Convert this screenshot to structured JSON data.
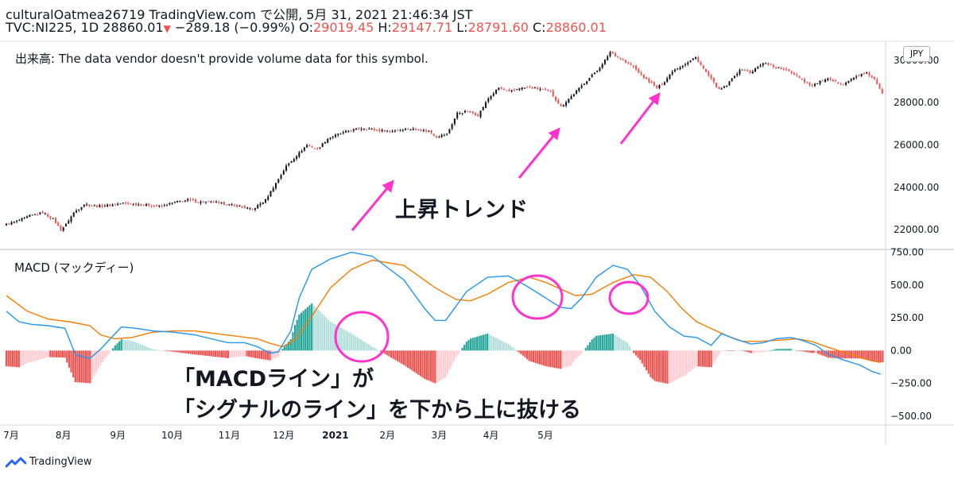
{
  "header": {
    "line1": "culturalOatmea26719 TradingView.com で公開, 5月 31, 2021 21:46:34 JST",
    "symbol": "TVC:NI225, 1D",
    "last": "28860.01",
    "change": "−289.18 (−0.99%)",
    "o_label": "O:",
    "o_value": "29019.45",
    "h_label": "H:",
    "h_value": "29147.71",
    "l_label": "L:",
    "l_value": "28791.60",
    "c_label": "C:",
    "c_value": "28860.01"
  },
  "volume_note": "出来高: The data vendor doesn't provide volume data for this symbol.",
  "currency_badge": "JPY",
  "macd_label": "MACD (マックディー)",
  "annotations": {
    "trend": "上昇トレンド",
    "line1": "「MACDライン」が",
    "line2": "「シグナルのライン」を下から上に抜ける"
  },
  "brand": "TradingView",
  "colors": {
    "up": "#131722",
    "down": "#ef5350",
    "macd": "#2196f3",
    "signal": "#f57c00",
    "hist_pos_strong": "#26a69a",
    "hist_pos_weak": "#b2dfdb",
    "hist_neg_strong": "#ef5350",
    "hist_neg_weak": "#ffcdd2",
    "annotation": "#ff33cc"
  },
  "chart_data": [
    {
      "type": "candlestick",
      "title": "TVC:NI225, 1D",
      "ylim": [
        21100,
        30900
      ],
      "y_ticks": [
        "22000.00",
        "24000.00",
        "26000.00",
        "28000.00",
        "30000.00"
      ],
      "x_ticks": [
        "7月",
        "8月",
        "9月",
        "10月",
        "11月",
        "12月",
        "2021",
        "2月",
        "3月",
        "4月",
        "5月"
      ],
      "close_path": [
        [
          0,
          22250
        ],
        [
          4,
          22400
        ],
        [
          9,
          22650
        ],
        [
          14,
          22800
        ],
        [
          18,
          22500
        ],
        [
          21,
          22000
        ],
        [
          23,
          22250
        ],
        [
          26,
          22800
        ],
        [
          30,
          23200
        ],
        [
          35,
          23100
        ],
        [
          40,
          23150
        ],
        [
          45,
          23250
        ],
        [
          50,
          23200
        ],
        [
          55,
          23150
        ],
        [
          60,
          23100
        ],
        [
          65,
          23300
        ],
        [
          70,
          23400
        ],
        [
          75,
          23300
        ],
        [
          80,
          23300
        ],
        [
          85,
          23200
        ],
        [
          90,
          23100
        ],
        [
          95,
          22950
        ],
        [
          100,
          23400
        ],
        [
          104,
          24200
        ],
        [
          108,
          25000
        ],
        [
          112,
          25500
        ],
        [
          116,
          26000
        ],
        [
          120,
          25800
        ],
        [
          124,
          26300
        ],
        [
          128,
          26500
        ],
        [
          133,
          26700
        ],
        [
          138,
          26800
        ],
        [
          143,
          26700
        ],
        [
          148,
          26650
        ],
        [
          153,
          26750
        ],
        [
          158,
          26750
        ],
        [
          163,
          26650
        ],
        [
          166,
          26400
        ],
        [
          170,
          26500
        ],
        [
          174,
          27500
        ],
        [
          178,
          27600
        ],
        [
          182,
          27400
        ],
        [
          186,
          28200
        ],
        [
          190,
          28700
        ],
        [
          194,
          28500
        ],
        [
          198,
          28700
        ],
        [
          202,
          28700
        ],
        [
          206,
          28650
        ],
        [
          210,
          28500
        ],
        [
          214,
          27800
        ],
        [
          218,
          28300
        ],
        [
          222,
          28800
        ],
        [
          226,
          29300
        ],
        [
          230,
          29800
        ],
        [
          233,
          30400
        ],
        [
          236,
          30150
        ],
        [
          239,
          29900
        ],
        [
          242,
          29700
        ],
        [
          245,
          29300
        ],
        [
          248,
          29000
        ],
        [
          251,
          28700
        ],
        [
          254,
          29000
        ],
        [
          257,
          29500
        ],
        [
          260,
          29700
        ],
        [
          263,
          29900
        ],
        [
          266,
          30150
        ],
        [
          269,
          29600
        ],
        [
          272,
          29100
        ],
        [
          275,
          28600
        ],
        [
          278,
          28800
        ],
        [
          281,
          29300
        ],
        [
          284,
          29600
        ],
        [
          287,
          29400
        ],
        [
          290,
          29700
        ],
        [
          293,
          29900
        ],
        [
          296,
          29700
        ],
        [
          299,
          29600
        ],
        [
          302,
          29500
        ],
        [
          305,
          29300
        ],
        [
          308,
          29000
        ],
        [
          311,
          28800
        ],
        [
          314,
          29000
        ],
        [
          317,
          29100
        ],
        [
          320,
          28950
        ],
        [
          323,
          28900
        ],
        [
          326,
          29100
        ],
        [
          329,
          29300
        ],
        [
          332,
          29400
        ],
        [
          335,
          29100
        ],
        [
          338,
          28400
        ]
      ]
    },
    {
      "type": "line",
      "title": "MACD (マックディー)",
      "ylim": [
        -550,
        760
      ],
      "y_ticks": [
        "750.00",
        "500.00",
        "250.00",
        "0.00",
        "−250.00",
        "−500.00"
      ],
      "series": [
        {
          "key": "macd",
          "points": [
            [
              0,
              300
            ],
            [
              6,
              220
            ],
            [
              12,
              200
            ],
            [
              20,
              190
            ],
            [
              28,
              170
            ],
            [
              33,
              -30
            ],
            [
              40,
              -60
            ],
            [
              45,
              10
            ],
            [
              55,
              180
            ],
            [
              62,
              170
            ],
            [
              70,
              150
            ],
            [
              80,
              140
            ],
            [
              90,
              120
            ],
            [
              98,
              90
            ],
            [
              106,
              60
            ],
            [
              114,
              60
            ],
            [
              120,
              30
            ],
            [
              126,
              -20
            ],
            [
              130,
              -10
            ],
            [
              136,
              150
            ],
            [
              140,
              400
            ],
            [
              146,
              620
            ],
            [
              155,
              700
            ],
            [
              165,
              750
            ],
            [
              175,
              720
            ],
            [
              190,
              540
            ],
            [
              200,
              320
            ],
            [
              205,
              230
            ],
            [
              210,
              230
            ],
            [
              215,
              340
            ],
            [
              220,
              450
            ],
            [
              230,
              560
            ],
            [
              240,
              570
            ],
            [
              248,
              500
            ],
            [
              255,
              430
            ],
            [
              260,
              380
            ],
            [
              265,
              330
            ],
            [
              270,
              320
            ],
            [
              275,
              400
            ],
            [
              282,
              560
            ],
            [
              290,
              650
            ],
            [
              297,
              620
            ],
            [
              303,
              500
            ],
            [
              310,
              300
            ],
            [
              317,
              180
            ],
            [
              324,
              110
            ],
            [
              330,
              100
            ],
            [
              337,
              40
            ],
            [
              342,
              130
            ],
            [
              348,
              90
            ],
            [
              356,
              50
            ],
            [
              362,
              60
            ],
            [
              368,
              90
            ],
            [
              375,
              100
            ],
            [
              380,
              80
            ],
            [
              387,
              40
            ],
            [
              393,
              -30
            ],
            [
              400,
              -70
            ],
            [
              408,
              -110
            ],
            [
              414,
              -160
            ],
            [
              418,
              -180
            ]
          ]
        },
        {
          "key": "signal",
          "points": [
            [
              0,
              420
            ],
            [
              10,
              300
            ],
            [
              20,
              240
            ],
            [
              30,
              220
            ],
            [
              40,
              190
            ],
            [
              45,
              120
            ],
            [
              52,
              90
            ],
            [
              60,
              100
            ],
            [
              70,
              140
            ],
            [
              80,
              150
            ],
            [
              90,
              150
            ],
            [
              100,
              130
            ],
            [
              110,
              110
            ],
            [
              120,
              90
            ],
            [
              126,
              55
            ],
            [
              132,
              30
            ],
            [
              138,
              80
            ],
            [
              146,
              260
            ],
            [
              155,
              480
            ],
            [
              165,
              620
            ],
            [
              175,
              690
            ],
            [
              190,
              650
            ],
            [
              205,
              480
            ],
            [
              215,
              390
            ],
            [
              222,
              380
            ],
            [
              230,
              430
            ],
            [
              240,
              520
            ],
            [
              250,
              560
            ],
            [
              258,
              520
            ],
            [
              265,
              470
            ],
            [
              272,
              420
            ],
            [
              280,
              430
            ],
            [
              290,
              520
            ],
            [
              300,
              580
            ],
            [
              308,
              560
            ],
            [
              316,
              450
            ],
            [
              323,
              320
            ],
            [
              330,
              220
            ],
            [
              338,
              160
            ],
            [
              345,
              110
            ],
            [
              352,
              70
            ],
            [
              360,
              70
            ],
            [
              370,
              80
            ],
            [
              378,
              90
            ],
            [
              385,
              70
            ],
            [
              392,
              30
            ],
            [
              400,
              -10
            ],
            [
              408,
              -50
            ],
            [
              414,
              -80
            ],
            [
              418,
              -90
            ]
          ]
        }
      ]
    }
  ]
}
